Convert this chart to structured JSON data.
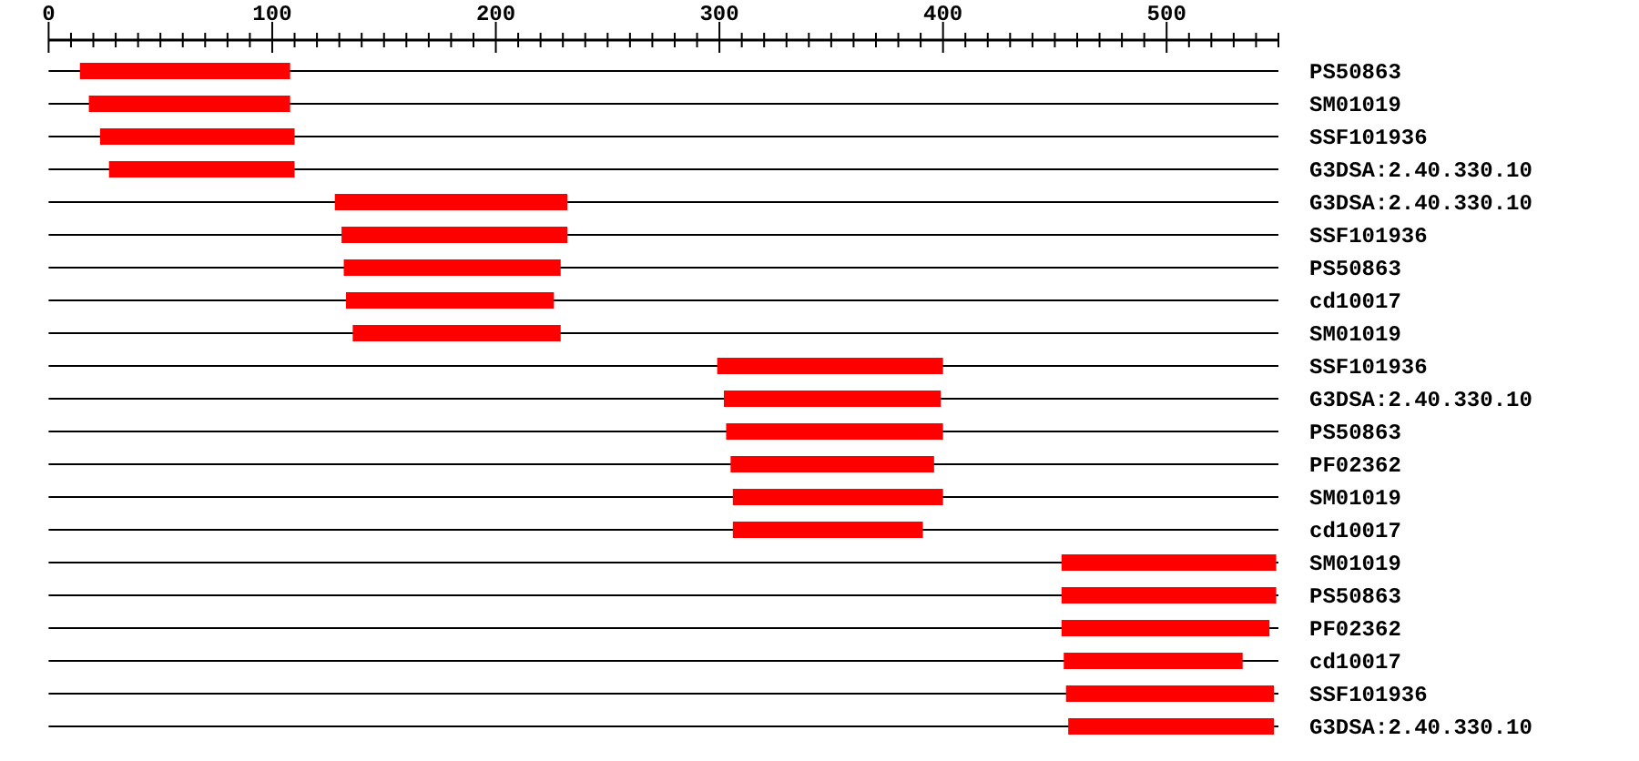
{
  "chart_data": {
    "type": "bar",
    "orientation": "horizontal",
    "color": "#ff0000",
    "grid": "y",
    "categories": [
      "PS50863",
      "SM01019",
      "SSF101936",
      "G3DSA:2.40.330.10",
      "G3DSA:2.40.330.10",
      "SSF101936",
      "PS50863",
      "cd10017",
      "SM01019",
      "SSF101936",
      "G3DSA:2.40.330.10",
      "PS50863",
      "PF02362",
      "SM01019",
      "cd10017",
      "SM01019",
      "PS50863",
      "PF02362",
      "cd10017",
      "SSF101936",
      "G3DSA:2.40.330.10"
    ],
    "base": [
      14,
      18,
      23,
      27,
      128,
      131,
      132,
      133,
      136,
      299,
      302,
      303,
      305,
      306,
      306,
      453,
      453,
      453,
      454,
      455,
      456
    ],
    "values": [
      94,
      90,
      87,
      83,
      104,
      101,
      97,
      93,
      93,
      101,
      97,
      97,
      91,
      94,
      85,
      96,
      96,
      93,
      80,
      93,
      92
    ],
    "xlim": [
      0,
      550
    ],
    "xticks": [
      0,
      {
        "value": 10,
        "label": null
      },
      {
        "value": 20,
        "label": null
      },
      {
        "value": 30,
        "label": null
      },
      {
        "value": 40,
        "label": null
      },
      {
        "value": 50,
        "label": null
      },
      {
        "value": 60,
        "label": null
      },
      {
        "value": 70,
        "label": null
      },
      {
        "value": 80,
        "label": null
      },
      {
        "value": 90,
        "label": null
      },
      100,
      {
        "value": 110,
        "label": null
      },
      {
        "value": 120,
        "label": null
      },
      {
        "value": 130,
        "label": null
      },
      {
        "value": 140,
        "label": null
      },
      {
        "value": 150,
        "label": null
      },
      {
        "value": 160,
        "label": null
      },
      {
        "value": 170,
        "label": null
      },
      {
        "value": 180,
        "label": null
      },
      {
        "value": 190,
        "label": null
      },
      200,
      {
        "value": 210,
        "label": null
      },
      {
        "value": 220,
        "label": null
      },
      {
        "value": 230,
        "label": null
      },
      {
        "value": 240,
        "label": null
      },
      {
        "value": 250,
        "label": null
      },
      {
        "value": 260,
        "label": null
      },
      {
        "value": 270,
        "label": null
      },
      {
        "value": 280,
        "label": null
      },
      {
        "value": 290,
        "label": null
      },
      300,
      {
        "value": 310,
        "label": null
      },
      {
        "value": 320,
        "label": null
      },
      {
        "value": 330,
        "label": null
      },
      {
        "value": 340,
        "label": null
      },
      {
        "value": 350,
        "label": null
      },
      {
        "value": 360,
        "label": null
      },
      {
        "value": 370,
        "label": null
      },
      {
        "value": 380,
        "label": null
      },
      {
        "value": 390,
        "label": null
      },
      400,
      {
        "value": 410,
        "label": null
      },
      {
        "value": 420,
        "label": null
      },
      {
        "value": 430,
        "label": null
      },
      {
        "value": 440,
        "label": null
      },
      {
        "value": 450,
        "label": null
      },
      {
        "value": 460,
        "label": null
      },
      {
        "value": 470,
        "label": null
      },
      {
        "value": 480,
        "label": null
      },
      {
        "value": 490,
        "label": null
      },
      500,
      {
        "value": 510,
        "label": null
      },
      {
        "value": 520,
        "label": null
      },
      {
        "value": 530,
        "label": null
      },
      {
        "value": 540,
        "label": null
      },
      {
        "value": 550,
        "label": null
      }
    ]
  }
}
